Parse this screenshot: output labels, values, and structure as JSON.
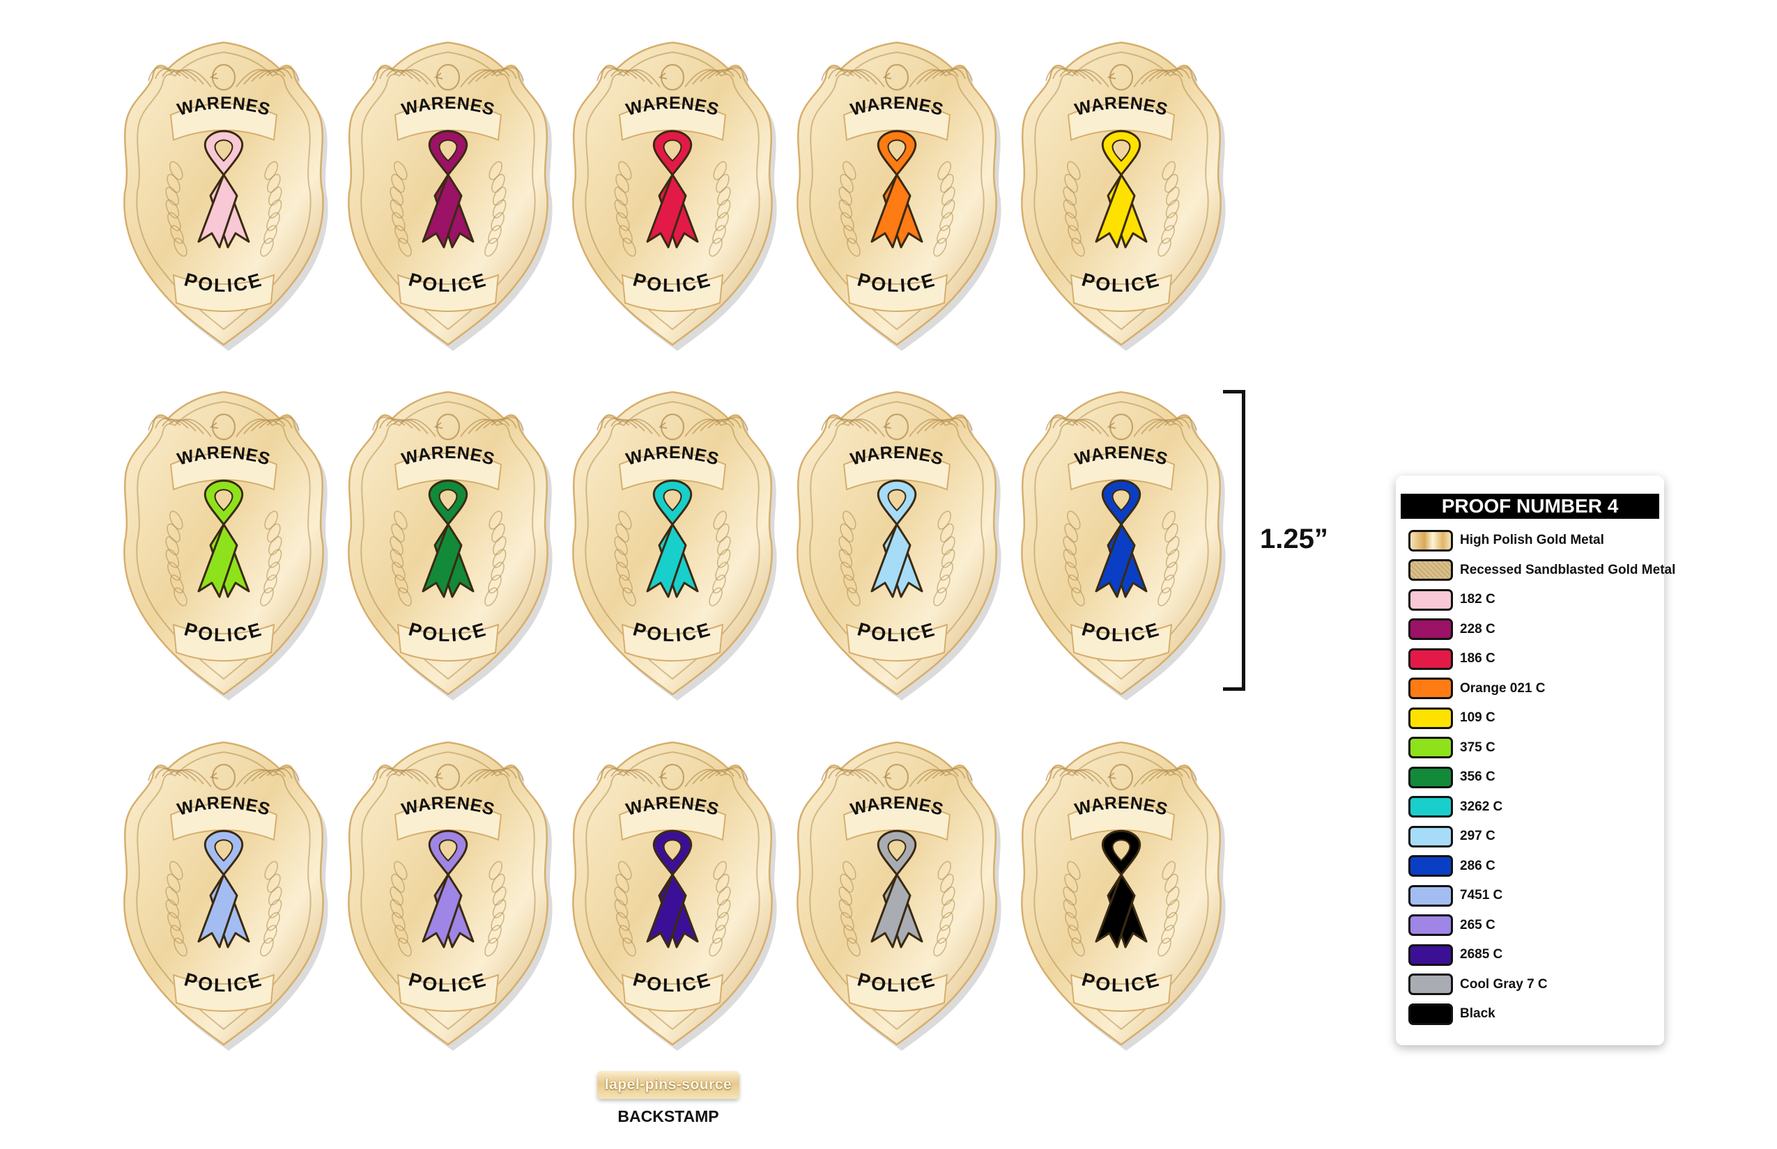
{
  "badge_text": {
    "top": "AWARENESS",
    "bottom": "POLICE"
  },
  "metal_colors": {
    "light": "#fbefd2",
    "mid": "#efd6a0",
    "dark": "#d6ae6c",
    "line": "#b08a4a"
  },
  "badges": [
    {
      "ribbon": "#f8c8d6"
    },
    {
      "ribbon": "#9b1266"
    },
    {
      "ribbon": "#e31a47"
    },
    {
      "ribbon": "#ff7b14"
    },
    {
      "ribbon": "#ffe100"
    },
    {
      "ribbon": "#8ee21b"
    },
    {
      "ribbon": "#128a3a"
    },
    {
      "ribbon": "#18cfcb"
    },
    {
      "ribbon": "#a6dcf7"
    },
    {
      "ribbon": "#0a3fc5"
    },
    {
      "ribbon": "#a3bdf3"
    },
    {
      "ribbon": "#9f85e6"
    },
    {
      "ribbon": "#3c1096"
    },
    {
      "ribbon": "#a9acb2"
    },
    {
      "ribbon": "#000000"
    }
  ],
  "dimension": {
    "label": "1.25”"
  },
  "backstamp": {
    "stamp_text": "lapel-pins-source",
    "caption": "BACKSTAMP"
  },
  "legend": {
    "title": "PROOF NUMBER 4",
    "items": [
      {
        "label": "High Polish Gold Metal",
        "color": "#f3d99f",
        "style": "polish"
      },
      {
        "label": "Recessed Sandblasted Gold Metal",
        "color": "#d9c08b",
        "style": "sandblast"
      },
      {
        "label": "182 C",
        "color": "#f8c8d6"
      },
      {
        "label": "228 C",
        "color": "#9b1266"
      },
      {
        "label": "186 C",
        "color": "#e31a47"
      },
      {
        "label": "Orange 021 C",
        "color": "#ff7b14"
      },
      {
        "label": "109 C",
        "color": "#ffe100"
      },
      {
        "label": "375 C",
        "color": "#8ee21b"
      },
      {
        "label": "356 C",
        "color": "#128a3a"
      },
      {
        "label": "3262 C",
        "color": "#18cfcb"
      },
      {
        "label": "297 C",
        "color": "#a6dcf7"
      },
      {
        "label": "286 C",
        "color": "#0a3fc5"
      },
      {
        "label": "7451 C",
        "color": "#a3bdf3"
      },
      {
        "label": "265 C",
        "color": "#9f85e6"
      },
      {
        "label": "2685 C",
        "color": "#3c1096"
      },
      {
        "label": "Cool Gray 7 C",
        "color": "#a9acb2"
      },
      {
        "label": "Black",
        "color": "#000000"
      }
    ]
  }
}
